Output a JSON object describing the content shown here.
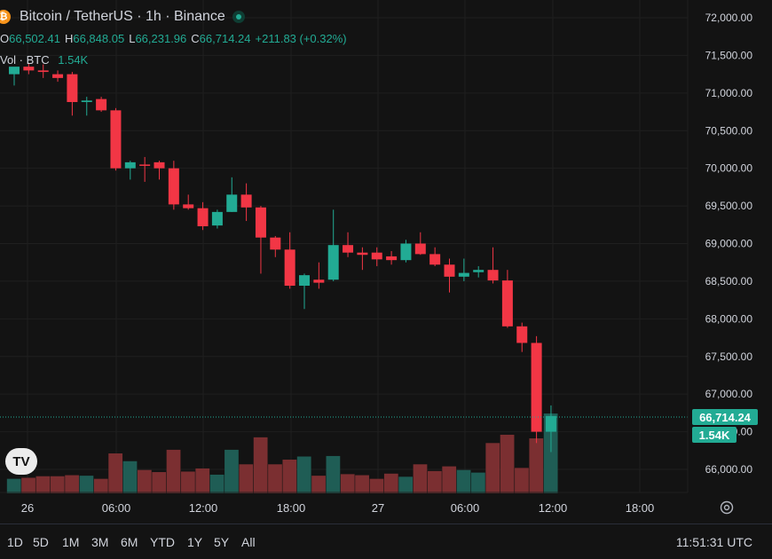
{
  "header": {
    "symbol_title": "Bitcoin / TetherUS · 1h · Binance",
    "icon": "bitcoin-icon",
    "status_icon": "live-dot-icon"
  },
  "ohlc": {
    "o_label": "O",
    "o": "66,502.41",
    "h_label": "H",
    "h": "66,848.05",
    "l_label": "L",
    "l": "66,231.96",
    "c_label": "C",
    "c": "66,714.24",
    "change": "+211.83 (+0.32%)"
  },
  "volume": {
    "label": "Vol · BTC",
    "value": "1.54K"
  },
  "price_badge": "66,714.24",
  "volume_badge": "1.54K",
  "timeframes": [
    "1D",
    "5D",
    "1M",
    "3M",
    "6M",
    "YTD",
    "1Y",
    "5Y",
    "All"
  ],
  "clock": "11:51:31 UTC",
  "logo": "TV",
  "colors": {
    "up": "#22ab94",
    "down": "#f23645",
    "background": "#131313",
    "grid": "#1f1f1f"
  },
  "chart_data": {
    "type": "candlestick",
    "title": "Bitcoin / TetherUS · 1h · Binance",
    "ylim": [
      65700,
      72200
    ],
    "y_ticks": [
      "72,000.00",
      "71,500.00",
      "71,000.00",
      "70,500.00",
      "70,000.00",
      "69,500.00",
      "69,000.00",
      "68,500.00",
      "68,000.00",
      "67,500.00",
      "67,000.00",
      "66,500.00",
      "66,000.00"
    ],
    "x_ticks": [
      "26",
      "06:00",
      "12:00",
      "18:00",
      "27",
      "06:00",
      "12:00",
      "18:00"
    ],
    "candles": [
      {
        "o": 71250,
        "h": 71300,
        "l": 71100,
        "c": 71350
      },
      {
        "o": 71350,
        "h": 71400,
        "l": 71250,
        "c": 71300
      },
      {
        "o": 71300,
        "h": 71380,
        "l": 71200,
        "c": 71280
      },
      {
        "o": 71250,
        "h": 71300,
        "l": 71150,
        "c": 71200
      },
      {
        "o": 71250,
        "h": 71280,
        "l": 70700,
        "c": 70880
      },
      {
        "o": 70880,
        "h": 70950,
        "l": 70700,
        "c": 70900
      },
      {
        "o": 70920,
        "h": 70950,
        "l": 70750,
        "c": 70770
      },
      {
        "o": 70770,
        "h": 70800,
        "l": 69970,
        "c": 70000
      },
      {
        "o": 70000,
        "h": 70100,
        "l": 69850,
        "c": 70080
      },
      {
        "o": 70050,
        "h": 70150,
        "l": 69820,
        "c": 70040
      },
      {
        "o": 70080,
        "h": 70100,
        "l": 69850,
        "c": 70000
      },
      {
        "o": 70000,
        "h": 70100,
        "l": 69450,
        "c": 69520
      },
      {
        "o": 69520,
        "h": 69650,
        "l": 69450,
        "c": 69470
      },
      {
        "o": 69470,
        "h": 69550,
        "l": 69180,
        "c": 69230
      },
      {
        "o": 69240,
        "h": 69450,
        "l": 69200,
        "c": 69420
      },
      {
        "o": 69420,
        "h": 69880,
        "l": 69420,
        "c": 69650
      },
      {
        "o": 69650,
        "h": 69800,
        "l": 69300,
        "c": 69480
      },
      {
        "o": 69480,
        "h": 69500,
        "l": 68600,
        "c": 69080
      },
      {
        "o": 69080,
        "h": 69100,
        "l": 68820,
        "c": 68920
      },
      {
        "o": 68920,
        "h": 69150,
        "l": 68400,
        "c": 68440
      },
      {
        "o": 68440,
        "h": 68600,
        "l": 68130,
        "c": 68580
      },
      {
        "o": 68520,
        "h": 68750,
        "l": 68400,
        "c": 68480
      },
      {
        "o": 68520,
        "h": 69450,
        "l": 68500,
        "c": 68980
      },
      {
        "o": 68980,
        "h": 69150,
        "l": 68820,
        "c": 68880
      },
      {
        "o": 68880,
        "h": 68950,
        "l": 68650,
        "c": 68850
      },
      {
        "o": 68880,
        "h": 68950,
        "l": 68700,
        "c": 68790
      },
      {
        "o": 68830,
        "h": 68900,
        "l": 68720,
        "c": 68780
      },
      {
        "o": 68780,
        "h": 69050,
        "l": 68750,
        "c": 69000
      },
      {
        "o": 69000,
        "h": 69150,
        "l": 68850,
        "c": 68860
      },
      {
        "o": 68860,
        "h": 68950,
        "l": 68700,
        "c": 68720
      },
      {
        "o": 68720,
        "h": 68800,
        "l": 68350,
        "c": 68560
      },
      {
        "o": 68560,
        "h": 68800,
        "l": 68500,
        "c": 68610
      },
      {
        "o": 68620,
        "h": 68700,
        "l": 68550,
        "c": 68650
      },
      {
        "o": 68650,
        "h": 68950,
        "l": 68470,
        "c": 68510
      },
      {
        "o": 68510,
        "h": 68650,
        "l": 67880,
        "c": 67900
      },
      {
        "o": 67900,
        "h": 67950,
        "l": 67560,
        "c": 67680
      },
      {
        "o": 67680,
        "h": 67770,
        "l": 66350,
        "c": 66500
      },
      {
        "o": 66500,
        "h": 66850,
        "l": 66230,
        "c": 66710
      }
    ],
    "volumes": [
      0.28,
      0.3,
      0.33,
      0.33,
      0.35,
      0.34,
      0.28,
      0.77,
      0.62,
      0.45,
      0.41,
      0.84,
      0.42,
      0.48,
      0.36,
      0.84,
      0.56,
      1.08,
      0.56,
      0.65,
      0.71,
      0.34,
      0.72,
      0.37,
      0.35,
      0.28,
      0.38,
      0.32,
      0.56,
      0.43,
      0.52,
      0.45,
      0.4,
      0.97,
      1.13,
      0.49,
      1.06,
      1.54
    ]
  }
}
